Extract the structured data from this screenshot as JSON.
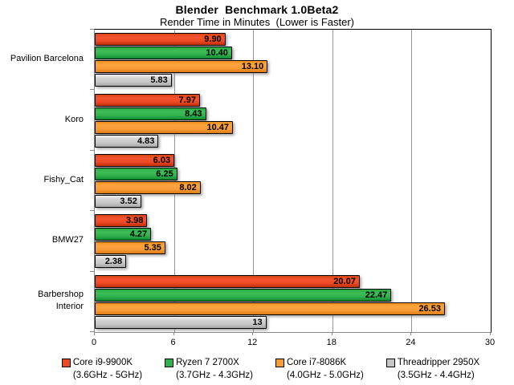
{
  "chart_data": {
    "type": "bar",
    "orientation": "horizontal",
    "title": "Blender  Benchmark 1.0Beta2",
    "subtitle": "Render Time in Minutes  (Lower is Faster)",
    "categories": [
      "Pavilion Barcelona",
      "Koro",
      "Fishy_Cat",
      "BMW27",
      "Barbershop\nInterior"
    ],
    "series": [
      {
        "name": "Core i9-9900K",
        "clock_range": "(3.6GHz - 5GHz)",
        "color": "#ee4a26",
        "values": [
          9.9,
          7.97,
          6.03,
          3.98,
          20.07
        ],
        "value_labels": [
          "9.90",
          "7.97",
          "6.03",
          "3.98",
          "20.07"
        ]
      },
      {
        "name": "Ryzen 7 2700X",
        "clock_range": "(3.7GHz - 4.3GHz)",
        "color": "#2fb14d",
        "values": [
          10.4,
          8.43,
          6.25,
          4.27,
          22.47
        ],
        "value_labels": [
          "10.40",
          "8.43",
          "6.25",
          "4.27",
          "22.47"
        ]
      },
      {
        "name": "Core i7-8086K",
        "clock_range": "(4.0GHz - 5.0GHz)",
        "color": "#f89c38",
        "values": [
          13.1,
          10.47,
          8.02,
          5.35,
          26.53
        ],
        "value_labels": [
          "13.10",
          "10.47",
          "8.02",
          "5.35",
          "26.53"
        ]
      },
      {
        "name": "Threadripper 2950X",
        "clock_range": "(3.5GHz - 4.4GHz)",
        "color": "#c6c6c6",
        "values": [
          5.83,
          4.83,
          3.52,
          2.38,
          13
        ],
        "value_labels": [
          "5.83",
          "4.83",
          "3.52",
          "2.38",
          "13"
        ]
      }
    ],
    "xlim": [
      0,
      30
    ],
    "xticks": [
      0,
      6,
      12,
      18,
      24,
      30
    ],
    "grid": true,
    "legend_position": "bottom",
    "colors": {
      "gridline": "#959595",
      "axis": "#898989",
      "plot_border": "#000000",
      "text": "#000000",
      "background": "#ffffff"
    }
  }
}
